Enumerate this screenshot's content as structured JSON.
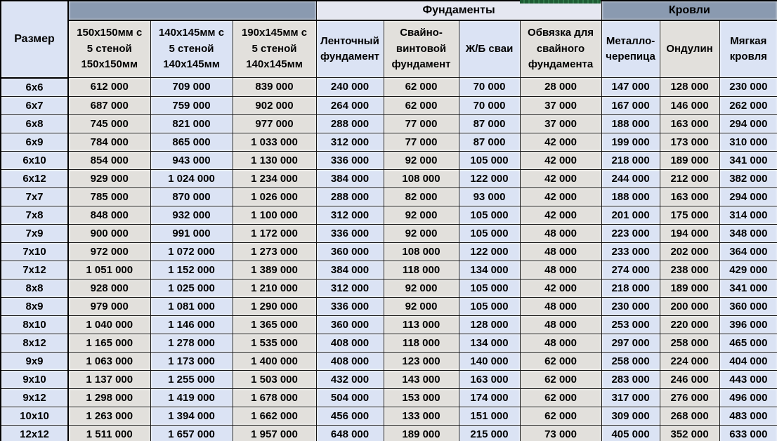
{
  "table": {
    "size_header": "Размер",
    "groups": {
      "walls": "",
      "foundations": "Фундаменты",
      "roofs": "Кровли"
    },
    "columns": [
      {
        "label": "150х150мм с\n5 стеной\n150х150мм",
        "group": "walls"
      },
      {
        "label": "140х145мм с\n5 стеной\n140х145мм",
        "group": "walls"
      },
      {
        "label": "190х145мм с\n5 стеной\n140х145мм",
        "group": "walls"
      },
      {
        "label": "Ленточный\nфундамент",
        "group": "foundations"
      },
      {
        "label": "Свайно-\nвинтовой\nфундамент",
        "group": "foundations"
      },
      {
        "label": "Ж/Б сваи",
        "group": "foundations"
      },
      {
        "label": "Обвязка для\nсвайного\nфундамента",
        "group": "foundations"
      },
      {
        "label": "Металло-\nчерепица",
        "group": "roofs"
      },
      {
        "label": "Ондулин",
        "group": "roofs"
      },
      {
        "label": "Мягкая\nкровля",
        "group": "roofs"
      }
    ],
    "rows": [
      {
        "size": "6x6",
        "values": [
          "612 000",
          "709 000",
          "839 000",
          "240 000",
          "62 000",
          "70 000",
          "28 000",
          "147 000",
          "128 000",
          "230 000"
        ]
      },
      {
        "size": "6x7",
        "values": [
          "687 000",
          "759 000",
          "902 000",
          "264 000",
          "62 000",
          "70 000",
          "37 000",
          "167 000",
          "146 000",
          "262 000"
        ]
      },
      {
        "size": "6x8",
        "values": [
          "745 000",
          "821 000",
          "977 000",
          "288 000",
          "77 000",
          "87 000",
          "37 000",
          "188 000",
          "163 000",
          "294 000"
        ]
      },
      {
        "size": "6x9",
        "values": [
          "784 000",
          "865 000",
          "1 033 000",
          "312 000",
          "77 000",
          "87 000",
          "42 000",
          "199 000",
          "173 000",
          "310 000"
        ]
      },
      {
        "size": "6x10",
        "values": [
          "854 000",
          "943 000",
          "1 130 000",
          "336 000",
          "92 000",
          "105 000",
          "42 000",
          "218 000",
          "189 000",
          "341 000"
        ]
      },
      {
        "size": "6x12",
        "values": [
          "929 000",
          "1 024 000",
          "1 234 000",
          "384 000",
          "108 000",
          "122 000",
          "42 000",
          "244 000",
          "212 000",
          "382 000"
        ]
      },
      {
        "size": "7x7",
        "values": [
          "785 000",
          "870 000",
          "1 026 000",
          "288 000",
          "82 000",
          "93 000",
          "42 000",
          "188 000",
          "163 000",
          "294 000"
        ]
      },
      {
        "size": "7x8",
        "values": [
          "848 000",
          "932 000",
          "1 100 000",
          "312 000",
          "92 000",
          "105 000",
          "42 000",
          "201 000",
          "175 000",
          "314 000"
        ]
      },
      {
        "size": "7x9",
        "values": [
          "900 000",
          "991 000",
          "1 172 000",
          "336 000",
          "92 000",
          "105 000",
          "48 000",
          "223 000",
          "194 000",
          "348 000"
        ]
      },
      {
        "size": "7x10",
        "values": [
          "972 000",
          "1 072 000",
          "1 273 000",
          "360 000",
          "108 000",
          "122 000",
          "48 000",
          "233 000",
          "202 000",
          "364 000"
        ]
      },
      {
        "size": "7x12",
        "values": [
          "1 051 000",
          "1 152 000",
          "1 389 000",
          "384 000",
          "118 000",
          "134 000",
          "48 000",
          "274 000",
          "238 000",
          "429 000"
        ]
      },
      {
        "size": "8x8",
        "values": [
          "928 000",
          "1 025 000",
          "1 210 000",
          "312 000",
          "92 000",
          "105 000",
          "42 000",
          "218 000",
          "189 000",
          "341 000"
        ]
      },
      {
        "size": "8x9",
        "values": [
          "979 000",
          "1 081 000",
          "1 290 000",
          "336 000",
          "92 000",
          "105 000",
          "48 000",
          "230 000",
          "200 000",
          "360 000"
        ]
      },
      {
        "size": "8x10",
        "values": [
          "1 040 000",
          "1 146 000",
          "1 365 000",
          "360 000",
          "113 000",
          "128 000",
          "48 000",
          "253 000",
          "220 000",
          "396 000"
        ]
      },
      {
        "size": "8x12",
        "values": [
          "1 165 000",
          "1 278 000",
          "1 535 000",
          "408 000",
          "118 000",
          "134 000",
          "48 000",
          "297 000",
          "258 000",
          "465 000"
        ]
      },
      {
        "size": "9x9",
        "values": [
          "1 063 000",
          "1 173 000",
          "1 400 000",
          "408 000",
          "123 000",
          "140 000",
          "62 000",
          "258 000",
          "224 000",
          "404 000"
        ]
      },
      {
        "size": "9x10",
        "values": [
          "1 137 000",
          "1 255 000",
          "1 503 000",
          "432 000",
          "143 000",
          "163 000",
          "62 000",
          "283 000",
          "246 000",
          "443 000"
        ]
      },
      {
        "size": "9x12",
        "values": [
          "1 298 000",
          "1 419 000",
          "1 678 000",
          "504 000",
          "153 000",
          "174 000",
          "62 000",
          "317 000",
          "276 000",
          "496 000"
        ]
      },
      {
        "size": "10x10",
        "values": [
          "1 263 000",
          "1 394 000",
          "1 662 000",
          "456 000",
          "133 000",
          "151 000",
          "62 000",
          "309 000",
          "268 000",
          "483 000"
        ]
      },
      {
        "size": "12x12",
        "values": [
          "1 511 000",
          "1 657 000",
          "1 957 000",
          "648 000",
          "189 000",
          "215 000",
          "73 000",
          "405 000",
          "352 000",
          "633 000"
        ]
      }
    ],
    "colors": {
      "band_blue": "#8a9ab0",
      "band_light": "#e5e7f1",
      "cell_blue": "#dbe3f4",
      "cell_gray": "#e2e0dc",
      "accent_green": "#1d5b33"
    }
  }
}
